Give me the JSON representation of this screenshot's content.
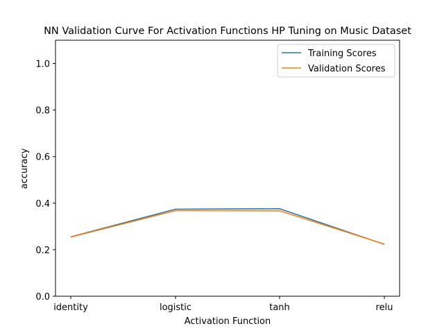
{
  "chart_data": {
    "type": "line",
    "title": "NN Validation Curve For Activation Functions HP Tuning on Music Dataset",
    "xlabel": "Activation Function",
    "ylabel": "accuracy",
    "categories": [
      "identity",
      "logistic",
      "tanh",
      "relu"
    ],
    "ylim": [
      0.0,
      1.1
    ],
    "yticks": [
      "0.0",
      "0.2",
      "0.4",
      "0.6",
      "0.8",
      "1.0"
    ],
    "grid": false,
    "legend_position": "top-right",
    "series": [
      {
        "name": "Training Scores",
        "color": "#1f77b4",
        "values": [
          0.255,
          0.374,
          0.376,
          0.223
        ]
      },
      {
        "name": "Validation Scores",
        "color": "#ff7f0e",
        "values": [
          0.254,
          0.368,
          0.367,
          0.224
        ]
      }
    ]
  }
}
